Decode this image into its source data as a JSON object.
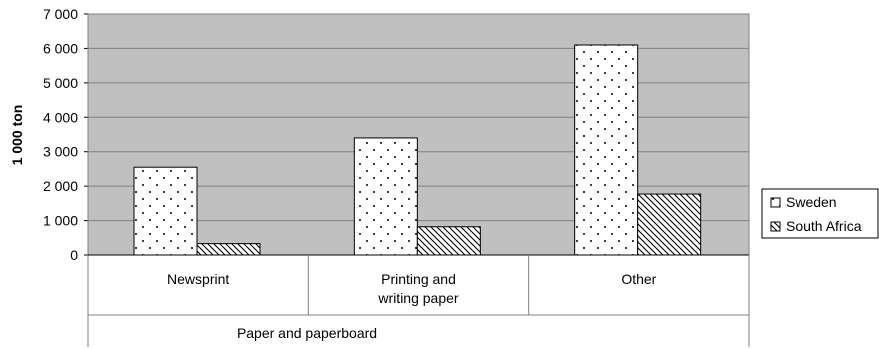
{
  "chart_data": {
    "type": "bar",
    "title": "",
    "ylabel": "1 000 ton",
    "xlabel": "Paper and paperboard",
    "categories": [
      [
        "Newsprint"
      ],
      [
        "Printing and",
        "writing paper"
      ],
      [
        "Other"
      ]
    ],
    "series": [
      {
        "name": "Sweden",
        "values": [
          2550,
          3400,
          6100
        ],
        "pattern": "dots"
      },
      {
        "name": "South Africa",
        "values": [
          330,
          820,
          1770
        ],
        "pattern": "diagonal-hatch"
      }
    ],
    "ylim": [
      0,
      7000
    ],
    "yticks": [
      0,
      1000,
      2000,
      3000,
      4000,
      5000,
      6000,
      7000
    ],
    "ytick_labels": [
      "0",
      "1 000",
      "2 000",
      "3 000",
      "4 000",
      "5 000",
      "6 000",
      "7 000"
    ],
    "grid": true,
    "legend_position": "right",
    "colors": {
      "plot_background": "#c0c0c0",
      "bar_fill": "#ffffff",
      "gridline": "#808080",
      "axis": "#808080"
    }
  }
}
